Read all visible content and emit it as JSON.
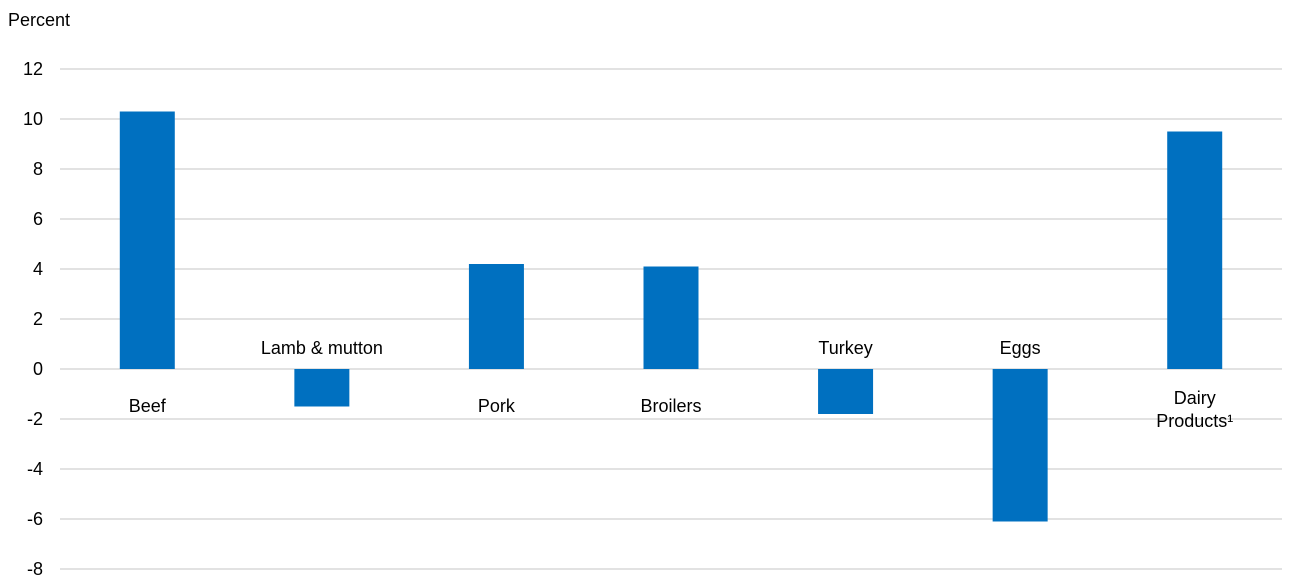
{
  "chart_data": {
    "type": "bar",
    "ylabel": "Percent",
    "categories": [
      "Beef",
      "Lamb & mutton",
      "Pork",
      "Broilers",
      "Turkey",
      "Eggs",
      "Dairy Products¹"
    ],
    "values": [
      10.3,
      -1.5,
      4.2,
      4.1,
      -1.8,
      -6.1,
      9.5
    ],
    "ylim": [
      -8,
      12
    ],
    "yticks": [
      12,
      10,
      8,
      6,
      4,
      2,
      0,
      -2,
      -4,
      -6,
      -8
    ],
    "ytick_labels": [
      "12",
      "10",
      "8",
      "6",
      "4",
      "2",
      "0",
      "-2",
      "-4",
      "-6",
      "-8"
    ],
    "grid": true,
    "legend": "none",
    "colors": {
      "bar": "#0070C0",
      "grid": "#D9D9D9",
      "text": "#000000"
    }
  }
}
